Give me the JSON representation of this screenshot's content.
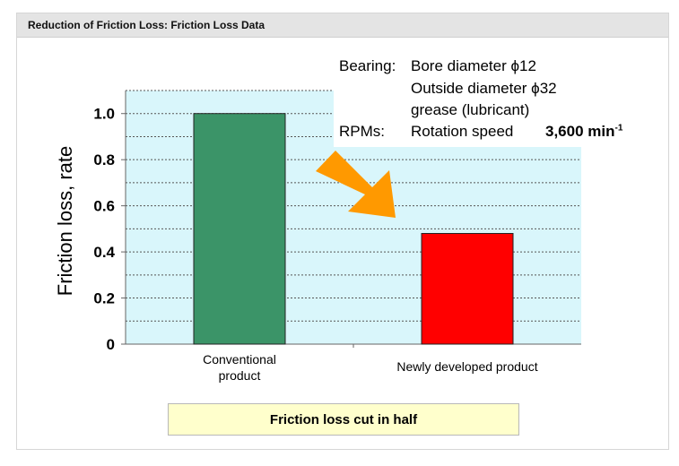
{
  "header": {
    "title": "Reduction of Friction Loss: Friction Loss Data"
  },
  "colors": {
    "plot_background": "#d9f6fb",
    "conventional_bar": "#3b9468",
    "new_bar": "#ff0000",
    "arrow": "#ff9900",
    "callout_background": "#ffffcc"
  },
  "spec": {
    "bearing_label": "Bearing:",
    "bore": "Bore diameter ϕ12",
    "outside": "Outside diameter ϕ32",
    "grease": "grease (lubricant)",
    "rpm_label": "RPMs:",
    "rpm_text": "Rotation speed",
    "rpm_value": "3,600 min",
    "rpm_exponent": "-1"
  },
  "callout": {
    "text": "Friction loss cut in half"
  },
  "arrow": {
    "icon": "down-right-arrow-icon"
  },
  "chart_data": {
    "type": "bar",
    "title": "",
    "xlabel": "",
    "ylabel": "Friction loss, rate",
    "categories": [
      {
        "lines": [
          "Conventional",
          "product"
        ]
      },
      {
        "lines": [
          "Newly developed product"
        ]
      }
    ],
    "values": [
      1.0,
      0.48
    ],
    "ylim": [
      0,
      1.1
    ],
    "yticks": [
      {
        "value": 0,
        "label": "0"
      },
      {
        "value": 0.2,
        "label": "0.2"
      },
      {
        "value": 0.4,
        "label": "0.4"
      },
      {
        "value": 0.6,
        "label": "0.6"
      },
      {
        "value": 0.8,
        "label": "0.8"
      },
      {
        "value": 1.0,
        "label": "1.0"
      }
    ],
    "grid": true,
    "grid_style": "dotted",
    "grid_step": 0.1,
    "legend": "none"
  }
}
